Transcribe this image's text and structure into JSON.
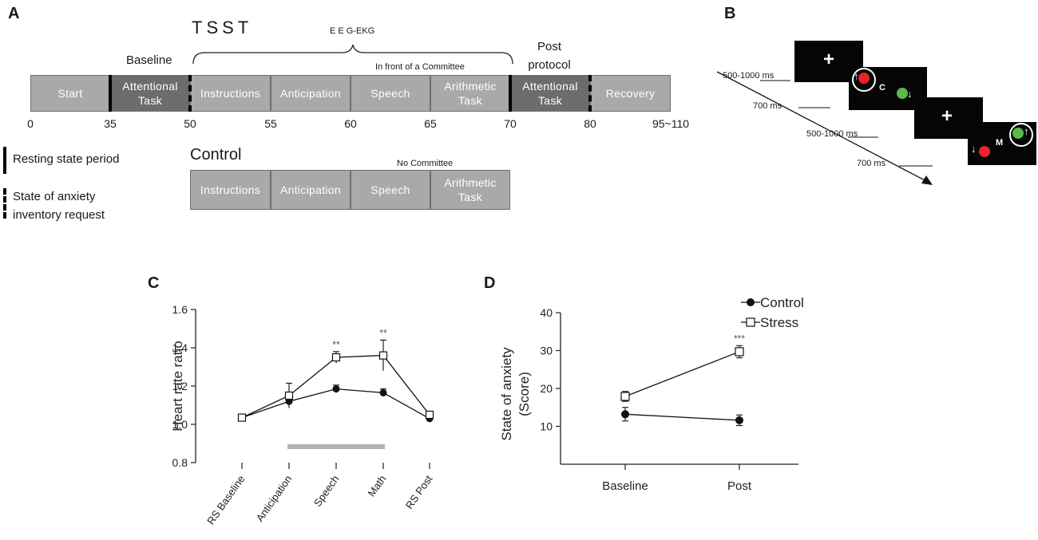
{
  "panel_a": {
    "letter": "A",
    "tsst_label": "TSST",
    "eeg_label": "E E G-EKG",
    "baseline_label": "Baseline",
    "post_label_line1": "Post",
    "post_label_line2": "protocol",
    "committee_label": "In front of a Committee",
    "tsst_segments": [
      {
        "line1": "Start",
        "line2": ""
      },
      {
        "line1": "Attentional",
        "line2": "Task"
      },
      {
        "line1": "Instructions",
        "line2": ""
      },
      {
        "line1": "Anticipation",
        "line2": ""
      },
      {
        "line1": "Speech",
        "line2": ""
      },
      {
        "line1": "Arithmetic",
        "line2": "Task"
      },
      {
        "line1": "Attentional",
        "line2": "Task"
      },
      {
        "line1": "Recovery",
        "line2": ""
      }
    ],
    "ticks": [
      "0",
      "35",
      "50",
      "55",
      "60",
      "65",
      "70",
      "80",
      "95~110"
    ],
    "legend_resting": "Resting state period",
    "legend_anxiety_line1": "State of anxiety",
    "legend_anxiety_line2": "inventory request",
    "control_label": "Control",
    "no_committee_label": "No Committee",
    "control_segments": [
      {
        "line1": "Instructions",
        "line2": ""
      },
      {
        "line1": "Anticipation",
        "line2": ""
      },
      {
        "line1": "Speech",
        "line2": ""
      },
      {
        "line1": "Arithmetic",
        "line2": "Task"
      }
    ]
  },
  "panel_b": {
    "letter": "B",
    "fixation": "+",
    "letter_c": "C",
    "letter_m": "M",
    "arrow_up": "↑",
    "arrow_down": "↓",
    "timing_labels": [
      "500-1000 ms",
      "700 ms",
      "500-1000 ms",
      "700 ms"
    ],
    "colors": {
      "red": "#e8242a",
      "green": "#5cb84a"
    }
  },
  "chart_data": [
    {
      "panel": "C",
      "type": "line",
      "title": "",
      "ylabel": "Heart rate ratio",
      "xlabel": "",
      "ylim": [
        0.8,
        1.6
      ],
      "yticks": [
        "0.8",
        "1.0",
        "1.2",
        "1.4",
        "1.6"
      ],
      "categories": [
        "RS Baseline",
        "Anticipation",
        "Speech",
        "Math",
        "RS Post"
      ],
      "series": [
        {
          "name": "Control",
          "marker": "filled-circle",
          "values": [
            1.035,
            1.12,
            1.185,
            1.165,
            1.03
          ],
          "errors": [
            0.01,
            0.025,
            0.02,
            0.02,
            0.01
          ]
        },
        {
          "name": "Stress",
          "marker": "open-square",
          "values": [
            1.035,
            1.15,
            1.35,
            1.36,
            1.05
          ],
          "errors": [
            0.01,
            0.065,
            0.03,
            0.08,
            0.01
          ]
        }
      ],
      "annotations": [
        {
          "category": "Speech",
          "text": "**"
        },
        {
          "category": "Math",
          "text": "**"
        }
      ],
      "gray_bar": {
        "from": "Anticipation",
        "to": "Math"
      }
    },
    {
      "panel": "D",
      "type": "line",
      "title": "",
      "ylabel_line1": "State of anxiety",
      "ylabel_line2": "(Score)",
      "xlabel": "",
      "ylim": [
        0,
        40
      ],
      "yticks": [
        "10",
        "20",
        "30",
        "40"
      ],
      "categories": [
        "Baseline",
        "Post"
      ],
      "series": [
        {
          "name": "Control",
          "marker": "filled-circle",
          "values": [
            13.2,
            11.6
          ],
          "errors": [
            1.8,
            1.4
          ]
        },
        {
          "name": "Stress",
          "marker": "open-square",
          "values": [
            17.9,
            29.7
          ],
          "errors": [
            1.3,
            1.6
          ]
        }
      ],
      "annotations": [
        {
          "category": "Post",
          "text": "***"
        }
      ],
      "legend": [
        "Control",
        "Stress"
      ],
      "legend_position": "top-right"
    }
  ]
}
